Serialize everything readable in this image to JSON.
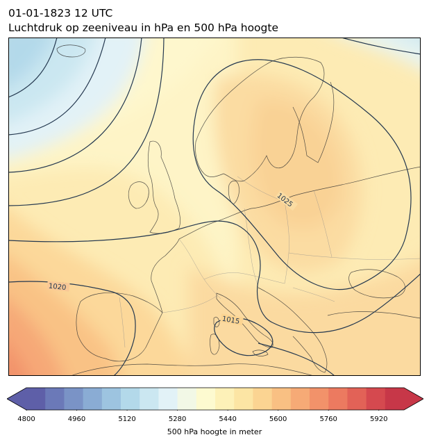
{
  "header": {
    "datetime": "01-01-1823 12 UTC",
    "subtitle": "Luchtdruk op zeeniveau in hPa en 500 hPa hoogte"
  },
  "map": {
    "region": "Europe",
    "contour_levels_hPa": [
      1015,
      1020,
      1025
    ],
    "contour_labels": [
      "1015",
      "1020",
      "1025"
    ],
    "colors": {
      "isobar": "#24384f",
      "coastline": "#333333",
      "border": "#8a8a8a"
    }
  },
  "colorbar": {
    "label": "500 hPa hoogte in meter",
    "ticks": [
      "4800",
      "4960",
      "5120",
      "5280",
      "5440",
      "5600",
      "5760",
      "5920"
    ],
    "range": [
      4800,
      6000
    ],
    "colors": [
      "#5e5fa8",
      "#6b79b8",
      "#7a93c6",
      "#8aacd4",
      "#9dc4e0",
      "#b3d9ea",
      "#cbe7f1",
      "#e2f2f7",
      "#f2f8e6",
      "#fdfad0",
      "#fdf1b8",
      "#fce5a4",
      "#fbd492",
      "#f9c083",
      "#f6aa76",
      "#f2926a",
      "#ec7a60",
      "#e26257",
      "#d5494f",
      "#c73748"
    ]
  }
}
